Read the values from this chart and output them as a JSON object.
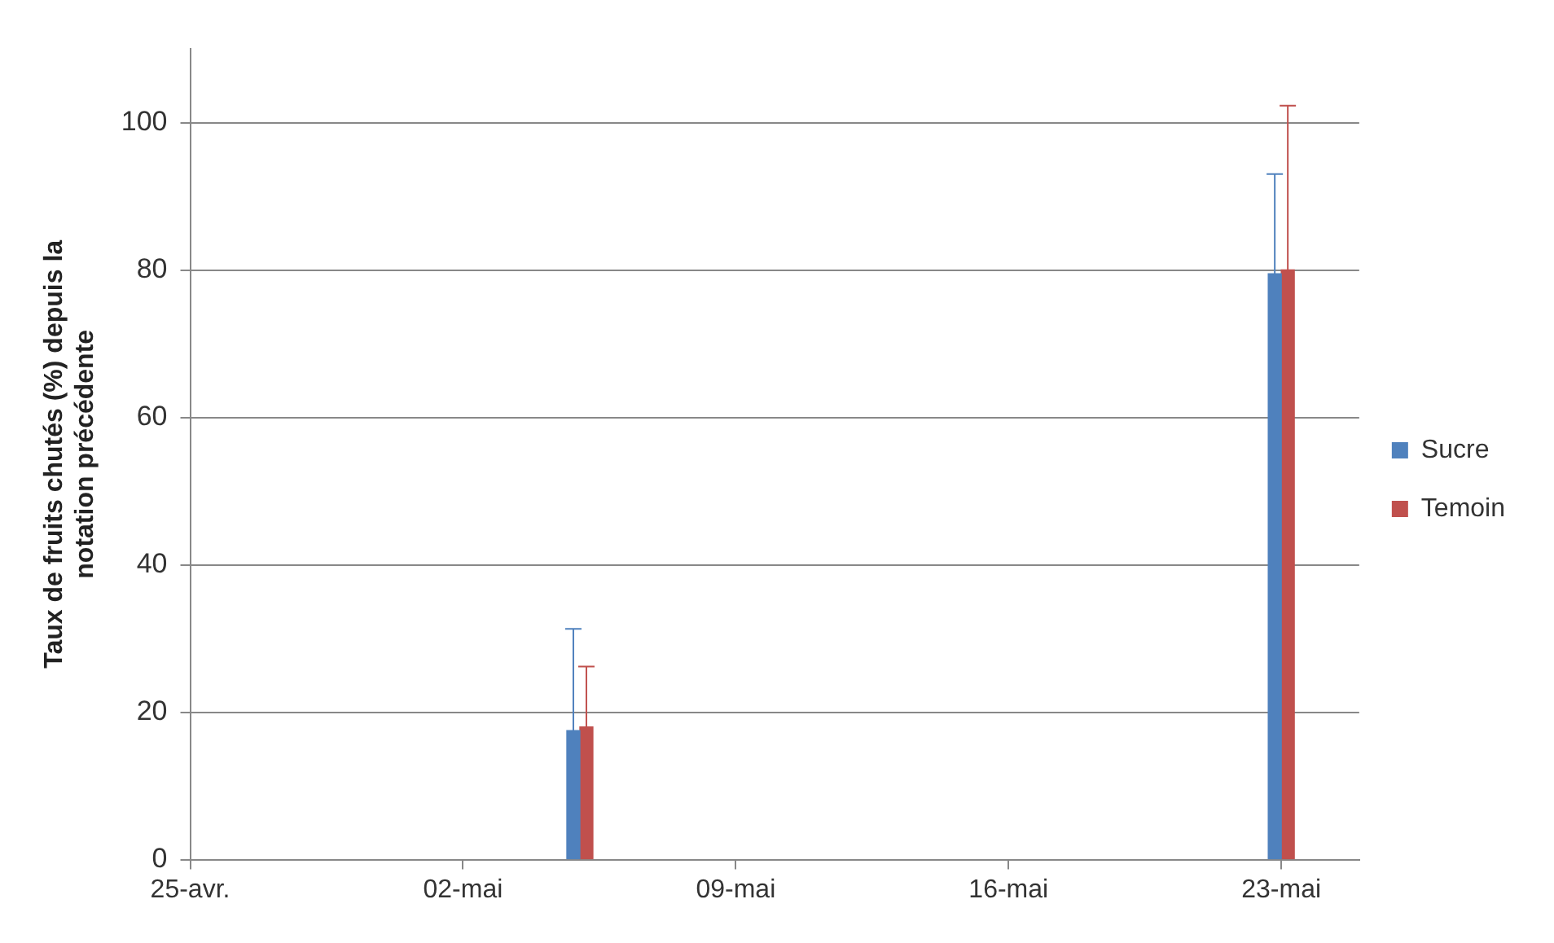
{
  "chart_data": {
    "type": "bar",
    "ylabel": "Taux de fruits chutés (%) depuis la notation précédente",
    "x": [
      "--05-05",
      "--05-23"
    ],
    "series": [
      {
        "name": "Sucre",
        "color": "#4f81bd",
        "values": [
          17.5,
          79.5
        ],
        "errors": [
          [
            17.5,
            31.3
          ],
          [
            79.5,
            93
          ]
        ]
      },
      {
        "name": "Temoin",
        "color": "#c0504d",
        "values": [
          18,
          80
        ],
        "errors": [
          [
            18,
            26.2
          ],
          [
            80,
            102.3
          ]
        ]
      }
    ],
    "xlim": [
      "--04-25",
      "--05-25"
    ],
    "xticks": [
      {
        "value": "--04-25",
        "label": "25-avr."
      },
      {
        "value": "--05-02",
        "label": "02-mai"
      },
      {
        "value": "--05-09",
        "label": "09-mai"
      },
      {
        "value": "--05-16",
        "label": "16-mai"
      },
      {
        "value": "--05-23",
        "label": "23-mai"
      }
    ],
    "ylim": [
      0,
      110
    ],
    "yticks": [
      0,
      20,
      40,
      60,
      80,
      100
    ],
    "grid": "y",
    "legend": "right"
  }
}
